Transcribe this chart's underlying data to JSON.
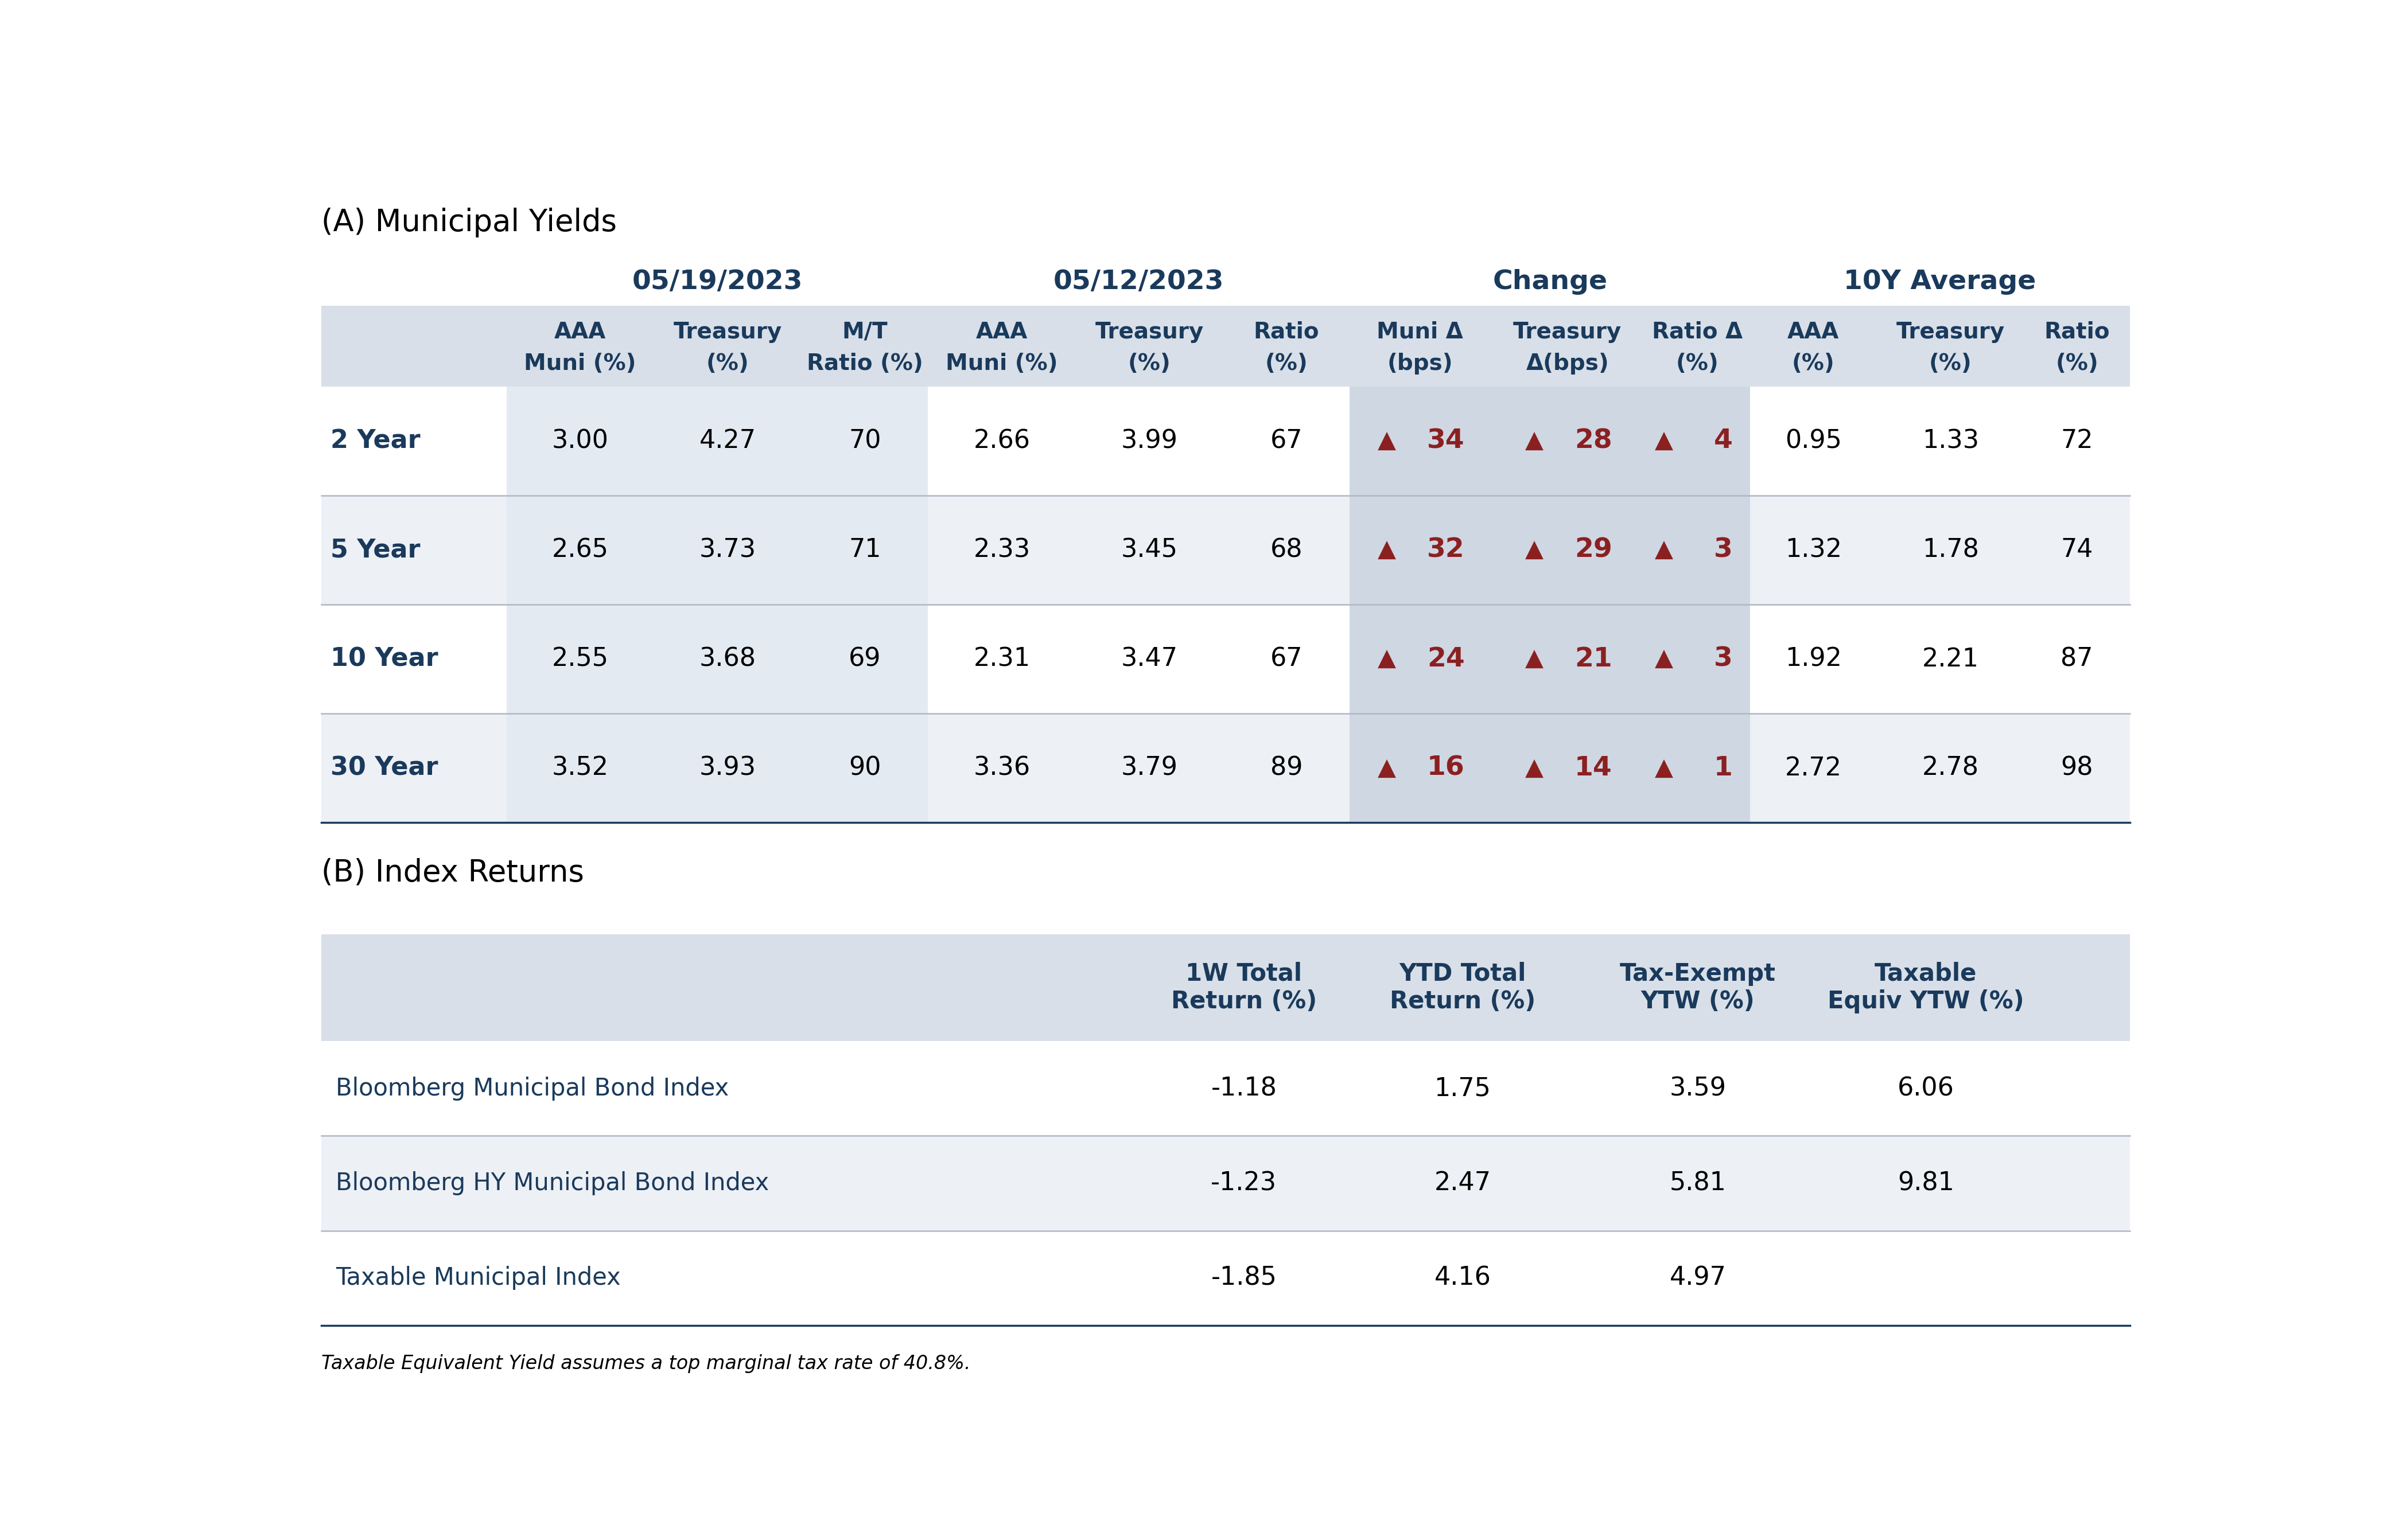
{
  "section_a_title": "(A) Municipal Yields",
  "section_b_title": "(B) Index Returns",
  "footnote": "Taxable Equivalent Yield assumes a top marginal tax rate of 40.8%.",
  "group_headers": [
    "05/19/2023",
    "05/12/2023",
    "Change",
    "10Y Average"
  ],
  "col_headers_line1": [
    "AAA",
    "Treasury",
    "M/T",
    "AAA",
    "Treasury",
    "Ratio",
    "Muni Δ",
    "Treasury",
    "Ratio Δ",
    "AAA",
    "Treasury",
    "Ratio"
  ],
  "col_headers_line2": [
    "Muni (%)",
    "(%)",
    "Ratio (%)",
    "Muni (%)",
    "(%)",
    "(%)",
    "(bps)",
    "Δ(bps)",
    "(%)",
    "(%)",
    "(%)",
    "(%)"
  ],
  "row_labels": [
    "2 Year",
    "5 Year",
    "10 Year",
    "30 Year"
  ],
  "table_data": [
    [
      "3.00",
      "4.27",
      "70",
      "2.66",
      "3.99",
      "67",
      "34",
      "28",
      "4",
      "0.95",
      "1.33",
      "72"
    ],
    [
      "2.65",
      "3.73",
      "71",
      "2.33",
      "3.45",
      "68",
      "32",
      "29",
      "3",
      "1.32",
      "1.78",
      "74"
    ],
    [
      "2.55",
      "3.68",
      "69",
      "2.31",
      "3.47",
      "67",
      "24",
      "21",
      "3",
      "1.92",
      "2.21",
      "87"
    ],
    [
      "3.52",
      "3.93",
      "90",
      "3.36",
      "3.79",
      "89",
      "16",
      "14",
      "1",
      "2.72",
      "2.78",
      "98"
    ]
  ],
  "change_cols": [
    6,
    7,
    8
  ],
  "index_headers": [
    "1W Total\nReturn (%)",
    "YTD Total\nReturn (%)",
    "Tax-Exempt\nYTW (%)",
    "Taxable\nEquiv YTW (%)"
  ],
  "index_row_labels": [
    "Bloomberg Municipal Bond Index",
    "Bloomberg HY Municipal Bond Index",
    "Taxable Municipal Index"
  ],
  "index_data": [
    [
      "-1.18",
      "1.75",
      "3.59",
      "6.06"
    ],
    [
      "-1.23",
      "2.47",
      "5.81",
      "9.81"
    ],
    [
      "-1.85",
      "4.16",
      "4.97",
      ""
    ]
  ],
  "dark_navy": "#1a3a5c",
  "red_color": "#8b2020",
  "bg_light": "#d8dfe8",
  "bg_white": "#ffffff",
  "bg_col_shade1": "#e4eaf2",
  "bg_col_shade2": "#cfd7e3",
  "row_bg_even": "#edf0f5",
  "title_fontsize": 38,
  "group_hdr_fontsize": 34,
  "col_hdr_fontsize": 28,
  "data_fontsize": 32,
  "change_fontsize": 34,
  "index_hdr_fontsize": 30,
  "index_data_fontsize": 32,
  "index_label_fontsize": 30,
  "footnote_fontsize": 24
}
